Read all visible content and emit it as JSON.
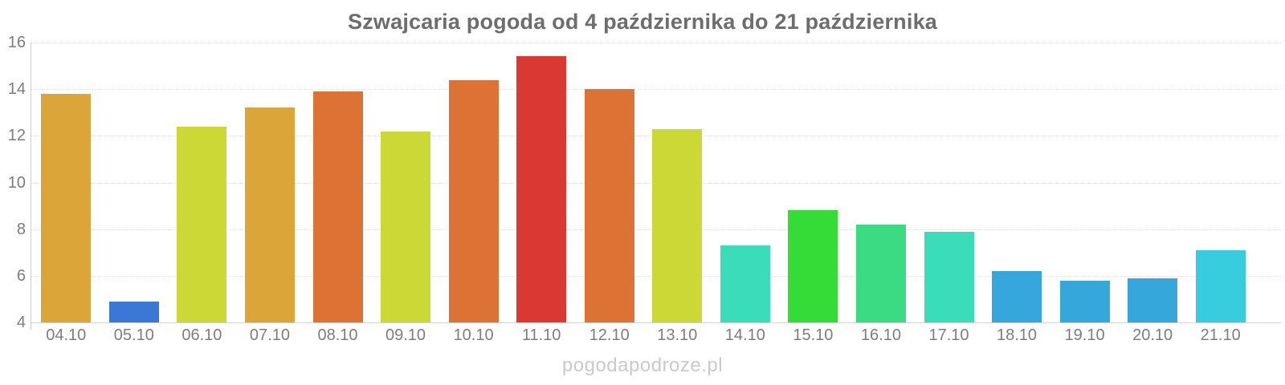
{
  "watermark": "pogodapodroze.pl",
  "chart_data": {
    "type": "bar",
    "title": "Szwajcaria pogoda od 4 października do 21 października",
    "categories": [
      "04.10",
      "05.10",
      "06.10",
      "07.10",
      "08.10",
      "09.10",
      "10.10",
      "11.10",
      "12.10",
      "13.10",
      "14.10",
      "15.10",
      "16.10",
      "17.10",
      "18.10",
      "19.10",
      "20.10",
      "21.10"
    ],
    "values": [
      13.8,
      4.9,
      12.4,
      13.2,
      13.9,
      12.2,
      14.4,
      15.4,
      14.0,
      12.3,
      7.3,
      8.8,
      8.2,
      7.9,
      6.2,
      5.8,
      5.9,
      7.1
    ],
    "bar_colors": [
      "#dba53a",
      "#3a78d8",
      "#cbd835",
      "#dba53a",
      "#dc7233",
      "#cbd835",
      "#dc7233",
      "#d93833",
      "#dc7233",
      "#cbd835",
      "#3adcba",
      "#35db36",
      "#3adb82",
      "#3adcba",
      "#36a7db",
      "#36a7db",
      "#36a7db",
      "#38cdde"
    ],
    "xlabel": "",
    "ylabel": "",
    "ylim": [
      4,
      16
    ],
    "yticks": [
      4,
      6,
      8,
      10,
      12,
      14,
      16
    ],
    "grid": true,
    "legend": "none",
    "colors": {
      "title": "#6d6d6d",
      "axis_labels": "#7d7d7d",
      "gridline": "#e3e3e3",
      "axis_line": "#cccccc",
      "watermark": "#c9c9ce",
      "background": "#ffffff"
    }
  }
}
